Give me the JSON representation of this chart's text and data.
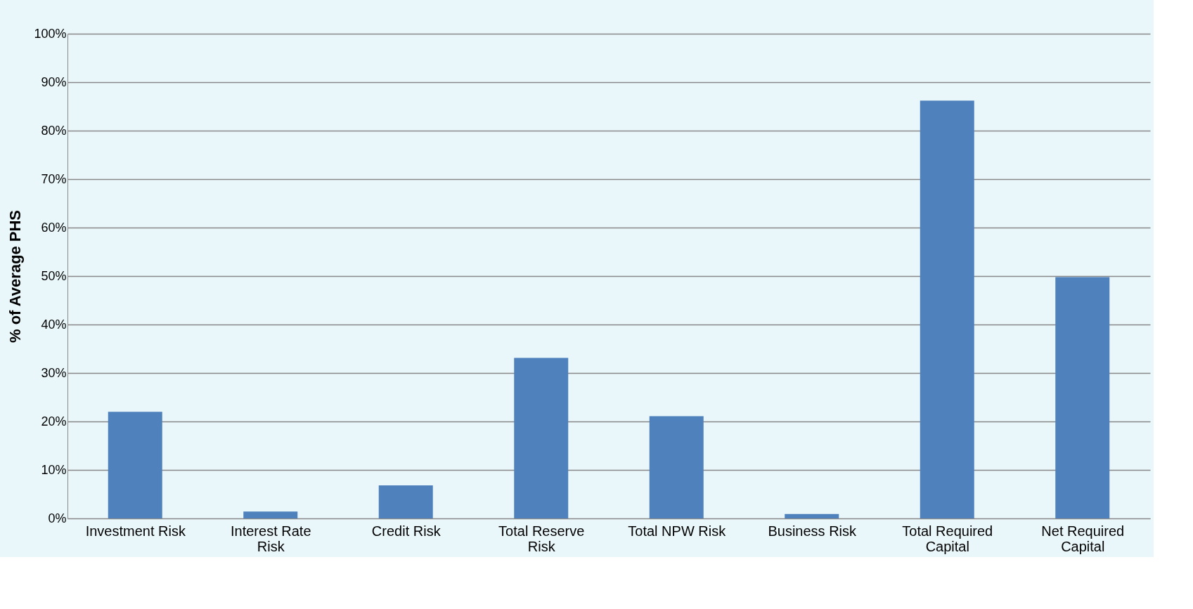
{
  "chart_data": {
    "type": "bar",
    "ylabel": "% of Average PHS",
    "categories": [
      "Investment Risk",
      "Interest Rate Risk",
      "Credit Risk",
      "Total Reserve Risk",
      "Total NPW Risk",
      "Business Risk",
      "Total Required Capital",
      "Net Required Capital"
    ],
    "values": [
      22,
      1.4,
      6.8,
      33.1,
      21.1,
      0.9,
      86.2,
      49.8
    ],
    "color": "#4f81bd",
    "ylim": [
      0,
      100
    ],
    "yticks": [
      {
        "value": 0,
        "label": "0%"
      },
      {
        "value": 10,
        "label": "10%"
      },
      {
        "value": 20,
        "label": "20%"
      },
      {
        "value": 30,
        "label": "30%"
      },
      {
        "value": 40,
        "label": "40%"
      },
      {
        "value": 50,
        "label": "50%"
      },
      {
        "value": 60,
        "label": "60%"
      },
      {
        "value": 70,
        "label": "70%"
      },
      {
        "value": 80,
        "label": "80%"
      },
      {
        "value": 90,
        "label": "90%"
      },
      {
        "value": 100,
        "label": "100%"
      }
    ],
    "grid": "y"
  }
}
